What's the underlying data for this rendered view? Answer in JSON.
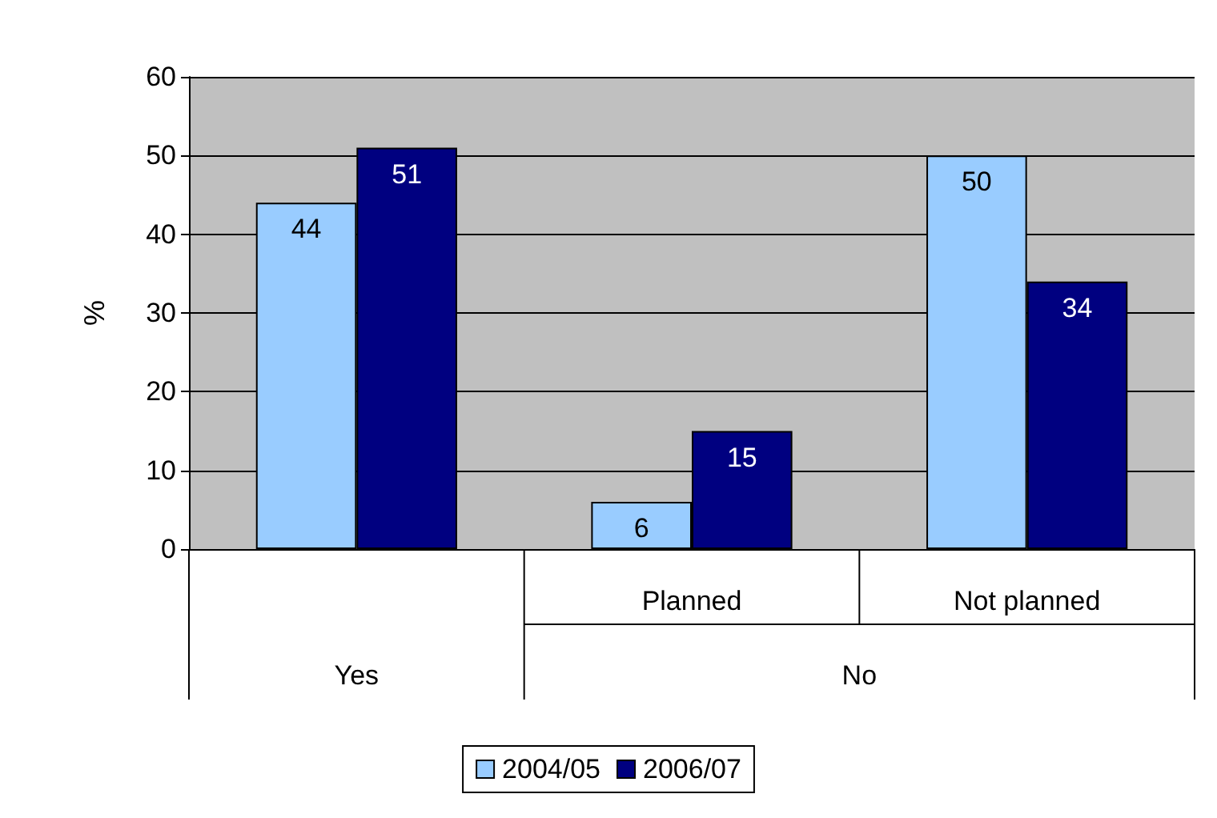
{
  "chart_data": {
    "type": "bar",
    "ylabel": "%",
    "categories": [
      null,
      "Planned",
      "Not planned"
    ],
    "series": [
      {
        "name": "2004/05",
        "color": "#99ccff",
        "values": [
          44,
          6,
          50
        ]
      },
      {
        "name": "2006/07",
        "color": "#000080",
        "values": [
          51,
          15,
          34
        ]
      }
    ],
    "annotations": [
      "Yes",
      "No"
    ],
    "ylim": [
      0,
      60
    ],
    "yticks": [
      0,
      10,
      20,
      30,
      40,
      50,
      60
    ],
    "grid": "y",
    "legend": "bottom",
    "data_labels": true
  }
}
